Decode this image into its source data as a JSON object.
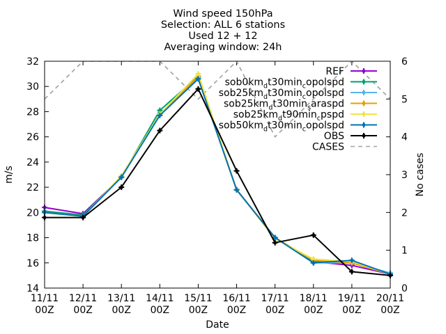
{
  "chart_data": {
    "type": "line",
    "title_lines": [
      "Wind speed 150hPa",
      "Selection: ALL      6 stations",
      "Used 12 + 12",
      "Averaging window: 24h"
    ],
    "xlabel": "Date",
    "ylabel": "m/s",
    "y2label": "No cases",
    "ylim": [
      14,
      32
    ],
    "y2lim": [
      0,
      6
    ],
    "yticks": [
      "14",
      "16",
      "18",
      "20",
      "22",
      "24",
      "26",
      "28",
      "30",
      "32"
    ],
    "y2ticks": [
      "0",
      "1",
      "2",
      "3",
      "4",
      "5",
      "6"
    ],
    "categories": [
      "11/11 00Z",
      "12/11 00Z",
      "13/11 00Z",
      "14/11 00Z",
      "15/11 00Z",
      "16/11 00Z",
      "17/11 00Z",
      "18/11 00Z",
      "19/11 00Z",
      "20/11 00Z"
    ],
    "category_lines": [
      [
        "11/11",
        "00Z"
      ],
      [
        "12/11",
        "00Z"
      ],
      [
        "13/11",
        "00Z"
      ],
      [
        "14/11",
        "00Z"
      ],
      [
        "15/11",
        "00Z"
      ],
      [
        "16/11",
        "00Z"
      ],
      [
        "17/11",
        "00Z"
      ],
      [
        "18/11",
        "00Z"
      ],
      [
        "19/11",
        "00Z"
      ],
      [
        "20/11",
        "00Z"
      ]
    ],
    "legend_position": "top-right",
    "grid": false,
    "series": [
      {
        "name": "REF",
        "label_parts": [
          [
            "REF",
            ""
          ]
        ],
        "color": "#9400d3",
        "marker": "plus",
        "values": [
          20.4,
          19.9,
          22.8,
          27.8,
          30.7,
          21.8,
          18.0,
          16.1,
          15.8,
          15.1
        ]
      },
      {
        "name": "sob0km_dt30min_copolspd",
        "label_parts": [
          [
            "sob0km",
            ""
          ],
          [
            "d",
            "sub"
          ],
          [
            "t30min",
            ""
          ],
          [
            "c",
            "sub"
          ],
          [
            "opolspd",
            ""
          ]
        ],
        "color": "#009e73",
        "marker": "plus",
        "values": [
          20.1,
          19.8,
          22.8,
          28.1,
          30.8,
          21.8,
          18.0,
          16.1,
          16.0,
          15.1
        ]
      },
      {
        "name": "sob25km_dt30min_copolspd",
        "label_parts": [
          [
            "sob25km",
            ""
          ],
          [
            "d",
            "sub"
          ],
          [
            "t30min",
            ""
          ],
          [
            "c",
            "sub"
          ],
          [
            "opolspd",
            ""
          ]
        ],
        "color": "#56b4e9",
        "marker": "plus",
        "values": [
          20.0,
          19.7,
          22.8,
          27.8,
          30.7,
          21.8,
          18.0,
          16.0,
          16.0,
          15.2
        ]
      },
      {
        "name": "sob25km_dt30min_saraspd",
        "label_parts": [
          [
            "sob25km",
            ""
          ],
          [
            "d",
            "sub"
          ],
          [
            "t30min",
            ""
          ],
          [
            "s",
            "sub"
          ],
          [
            "araspd",
            ""
          ]
        ],
        "color": "#e69f00",
        "marker": "plus",
        "values": [
          20.0,
          19.7,
          22.8,
          27.8,
          30.8,
          21.8,
          18.0,
          16.2,
          16.0,
          15.1
        ]
      },
      {
        "name": "sob25km_dt90min_cpspd",
        "label_parts": [
          [
            "sob25km",
            ""
          ],
          [
            "d",
            "sub"
          ],
          [
            "t90min",
            ""
          ],
          [
            "c",
            "sub"
          ],
          [
            "pspd",
            ""
          ]
        ],
        "color": "#f0e442",
        "marker": "plus",
        "values": [
          20.0,
          19.7,
          22.9,
          27.8,
          31.0,
          21.8,
          17.9,
          16.3,
          16.1,
          15.1
        ]
      },
      {
        "name": "sob50km_dt30min_copolspd",
        "label_parts": [
          [
            "sob50km",
            ""
          ],
          [
            "d",
            "sub"
          ],
          [
            "t30min",
            ""
          ],
          [
            "c",
            "sub"
          ],
          [
            "opolspd",
            ""
          ]
        ],
        "color": "#0072b2",
        "marker": "plus",
        "values": [
          20.0,
          19.7,
          22.8,
          27.7,
          30.6,
          21.8,
          18.0,
          16.0,
          16.2,
          15.1
        ]
      },
      {
        "name": "OBS",
        "label_parts": [
          [
            "OBS",
            ""
          ]
        ],
        "color": "#000000",
        "marker": "plus",
        "values": [
          19.6,
          19.6,
          22.0,
          26.5,
          29.8,
          23.3,
          17.6,
          18.2,
          15.3,
          15.0
        ]
      }
    ],
    "cases": {
      "name": "CASES",
      "label_parts": [
        [
          "CASES",
          ""
        ]
      ],
      "color": "#a0a0a0",
      "axis": "right",
      "values": [
        5,
        6,
        6,
        6,
        5,
        6,
        4,
        5,
        6,
        5
      ]
    }
  }
}
